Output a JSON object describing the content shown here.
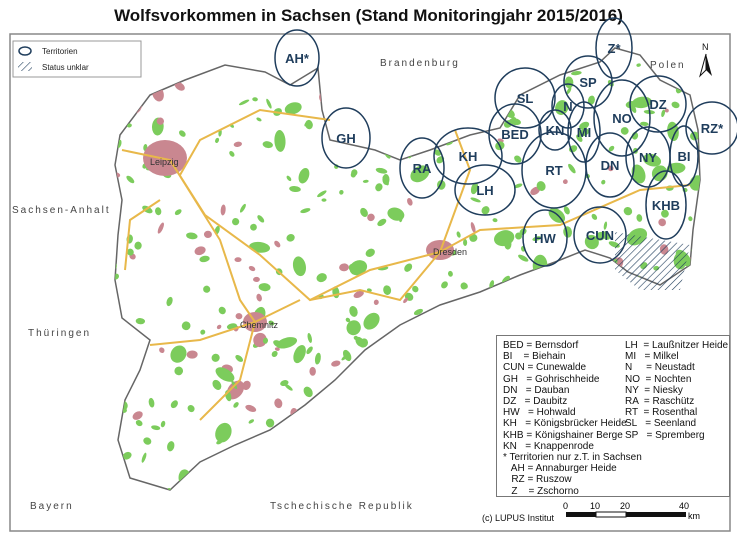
{
  "title": "Wolfsvorkommen in Sachsen (Stand Monitoringjahr 2015/2016)",
  "legend": {
    "territory": "Territorien",
    "unclear": "Status unklar"
  },
  "neighbors": {
    "brandenburg": "Brandenburg",
    "polen": "Polen",
    "sachsen_anhalt": "Sachsen-Anhalt",
    "thueringen": "Thüringen",
    "bayern": "Bayern",
    "tschechien": "Tschechische Republik"
  },
  "cities": {
    "leipzig": "Leipzig",
    "dresden": "Dresden",
    "chemnitz": "Chemnitz"
  },
  "north": "N",
  "territories": [
    "AH*",
    "Z*",
    "SP",
    "SL",
    "N",
    "NO",
    "DZ",
    "RZ*",
    "GH",
    "BED",
    "KN",
    "MI",
    "RA",
    "KH",
    "RT",
    "DN",
    "NY",
    "BI",
    "LH",
    "KHB",
    "HW",
    "CUN"
  ],
  "key_left": [
    "BED = Bernsdorf",
    "BI    = Biehain",
    "CUN = Cunewalde",
    "GH   = Gohrischheide",
    "DN   = Dauban",
    "DZ   = Daubitz",
    "HW   = Hohwald",
    "KH   = Königsbrücker Heide",
    "KHB = Königshainer Berge",
    "KN   = Knappenrode"
  ],
  "key_right": [
    "LH  = Laußnitzer Heide",
    "MI   = Milkel",
    "N     = Neustadt",
    "NO  = Nochten",
    "NY  = Niesky",
    "RA  = Raschütz",
    "RT  = Rosenthal",
    "SL   = Seenland",
    "SP   = Spremberg"
  ],
  "key_note": [
    "* Territorien nur z.T. in Sachsen",
    "   AH = Annaburger Heide",
    "   RZ = Ruszow",
    "   Z    = Zschorno"
  ],
  "copyright": "(c) LUPUS Institut",
  "scale": {
    "ticks": [
      "0",
      "10",
      "20",
      "40"
    ],
    "unit": "km"
  },
  "colors": {
    "forest": "#7ccc5c",
    "urban": "#c98790",
    "road": "#e8b84a",
    "territory": "#1f3d5c",
    "border": "#666666"
  }
}
